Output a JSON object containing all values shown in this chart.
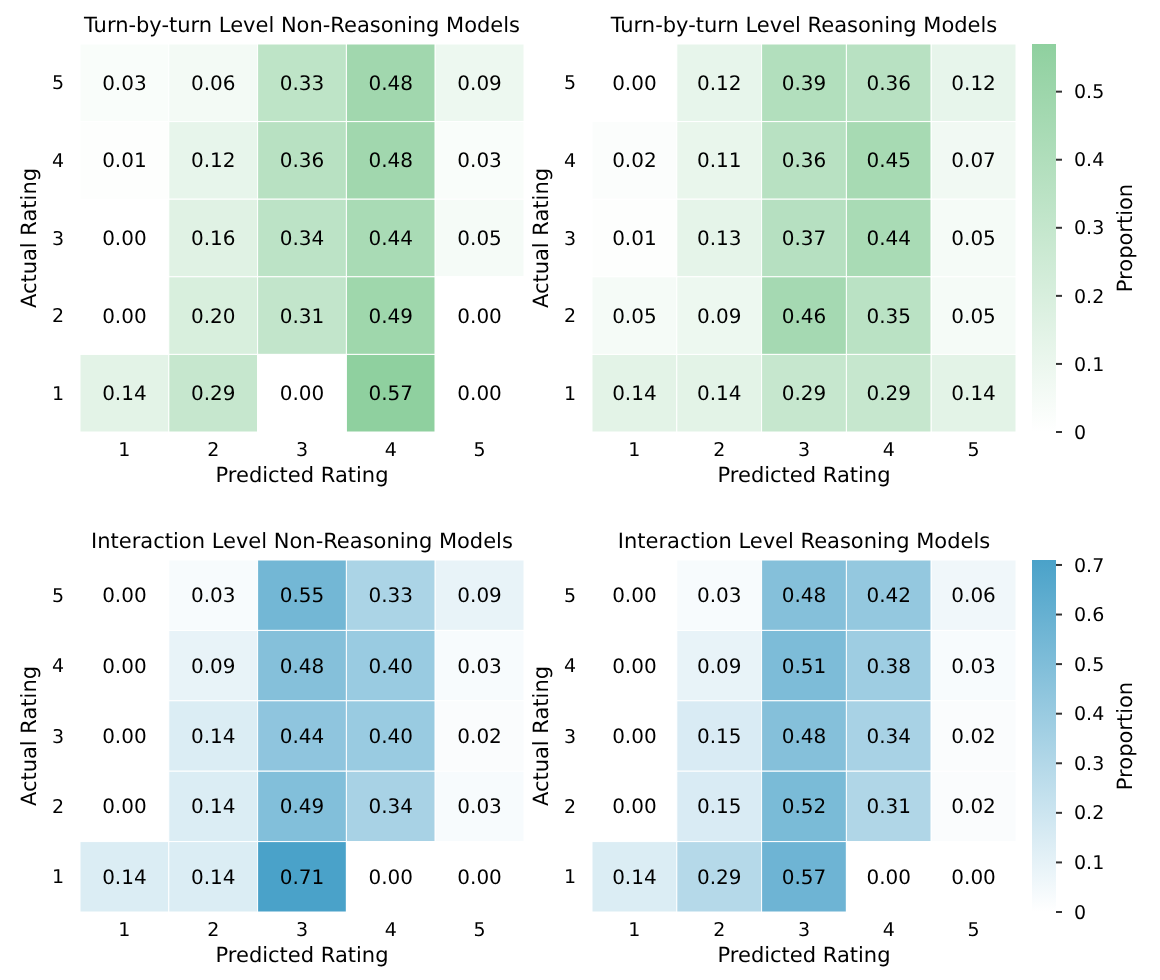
{
  "chart_data": [
    {
      "type": "heatmap",
      "title": "Turn-by-turn Level Non-Reasoning Models",
      "xlabel": "Predicted Rating",
      "ylabel": "Actual Rating",
      "categories": [
        "1",
        "2",
        "3",
        "4",
        "5"
      ],
      "y_categories": [
        "5",
        "4",
        "3",
        "2",
        "1"
      ],
      "color": "#8fd09f",
      "cells": [
        [
          0.03,
          0.06,
          0.33,
          0.48,
          0.09
        ],
        [
          0.01,
          0.12,
          0.36,
          0.48,
          0.03
        ],
        [
          0.0,
          0.16,
          0.34,
          0.44,
          0.05
        ],
        [
          0.0,
          0.2,
          0.31,
          0.49,
          0.0
        ],
        [
          0.14,
          0.29,
          0.0,
          0.57,
          0.0
        ]
      ],
      "cell_labels": [
        [
          "0.03",
          "0.06",
          "0.33",
          "0.48",
          "0.09"
        ],
        [
          "0.01",
          "0.12",
          "0.36",
          "0.48",
          "0.03"
        ],
        [
          "0.00",
          "0.16",
          "0.34",
          "0.44",
          "0.05"
        ],
        [
          "0.00",
          "0.20",
          "0.31",
          "0.49",
          "0.00"
        ],
        [
          "0.14",
          "0.29",
          "0.00",
          "0.57",
          "0.00"
        ]
      ]
    },
    {
      "type": "heatmap",
      "title": "Turn-by-turn Level Reasoning Models",
      "xlabel": "Predicted Rating",
      "ylabel": "Actual Rating",
      "categories": [
        "1",
        "2",
        "3",
        "4",
        "5"
      ],
      "y_categories": [
        "5",
        "4",
        "3",
        "2",
        "1"
      ],
      "color": "#8fd09f",
      "clim": [
        0,
        0.57
      ],
      "cticks": [
        0,
        {
          "value": 0.1,
          "label": "0.1"
        },
        {
          "value": 0.2,
          "label": "0.2"
        },
        {
          "value": 0.3,
          "label": "0.3"
        },
        {
          "value": 0.4,
          "label": "0.4"
        },
        {
          "value": 0.5,
          "label": "0.5"
        }
      ],
      "clabel": "Proportion",
      "cells": [
        [
          0.0,
          0.12,
          0.39,
          0.36,
          0.12
        ],
        [
          0.02,
          0.11,
          0.36,
          0.45,
          0.07
        ],
        [
          0.01,
          0.13,
          0.37,
          0.44,
          0.05
        ],
        [
          0.05,
          0.09,
          0.46,
          0.35,
          0.05
        ],
        [
          0.14,
          0.14,
          0.29,
          0.29,
          0.14
        ]
      ],
      "cell_labels": [
        [
          "0.00",
          "0.12",
          "0.39",
          "0.36",
          "0.12"
        ],
        [
          "0.02",
          "0.11",
          "0.36",
          "0.45",
          "0.07"
        ],
        [
          "0.01",
          "0.13",
          "0.37",
          "0.44",
          "0.05"
        ],
        [
          "0.05",
          "0.09",
          "0.46",
          "0.35",
          "0.05"
        ],
        [
          "0.14",
          "0.14",
          "0.29",
          "0.29",
          "0.14"
        ]
      ]
    },
    {
      "type": "heatmap",
      "title": "Interaction Level Non-Reasoning Models",
      "xlabel": "Predicted Rating",
      "ylabel": "Actual Rating",
      "categories": [
        "1",
        "2",
        "3",
        "4",
        "5"
      ],
      "y_categories": [
        "5",
        "4",
        "3",
        "2",
        "1"
      ],
      "color": "#4aa2c9",
      "cells": [
        [
          0.0,
          0.03,
          0.55,
          0.33,
          0.09
        ],
        [
          0.0,
          0.09,
          0.48,
          0.4,
          0.03
        ],
        [
          0.0,
          0.14,
          0.44,
          0.4,
          0.02
        ],
        [
          0.0,
          0.14,
          0.49,
          0.34,
          0.03
        ],
        [
          0.14,
          0.14,
          0.71,
          0.0,
          0.0
        ]
      ],
      "cell_labels": [
        [
          "0.00",
          "0.03",
          "0.55",
          "0.33",
          "0.09"
        ],
        [
          "0.00",
          "0.09",
          "0.48",
          "0.40",
          "0.03"
        ],
        [
          "0.00",
          "0.14",
          "0.44",
          "0.40",
          "0.02"
        ],
        [
          "0.00",
          "0.14",
          "0.49",
          "0.34",
          "0.03"
        ],
        [
          "0.14",
          "0.14",
          "0.71",
          "0.00",
          "0.00"
        ]
      ]
    },
    {
      "type": "heatmap",
      "title": "Interaction Level Reasoning Models",
      "xlabel": "Predicted Rating",
      "ylabel": "Actual Rating",
      "categories": [
        "1",
        "2",
        "3",
        "4",
        "5"
      ],
      "y_categories": [
        "5",
        "4",
        "3",
        "2",
        "1"
      ],
      "color": "#4aa2c9",
      "clim": [
        0,
        0.71
      ],
      "cticks": [
        0,
        {
          "value": 0.1,
          "label": "0.1"
        },
        {
          "value": 0.2,
          "label": "0.2"
        },
        {
          "value": 0.3,
          "label": "0.3"
        },
        {
          "value": 0.4,
          "label": "0.4"
        },
        {
          "value": 0.5,
          "label": "0.5"
        },
        {
          "value": 0.6,
          "label": "0.6"
        },
        {
          "value": 0.7,
          "label": "0.7"
        }
      ],
      "clabel": "Proportion",
      "cells": [
        [
          0.0,
          0.03,
          0.48,
          0.42,
          0.06
        ],
        [
          0.0,
          0.09,
          0.51,
          0.38,
          0.03
        ],
        [
          0.0,
          0.15,
          0.48,
          0.34,
          0.02
        ],
        [
          0.0,
          0.15,
          0.52,
          0.31,
          0.02
        ],
        [
          0.14,
          0.29,
          0.57,
          0.0,
          0.0
        ]
      ],
      "cell_labels": [
        [
          "0.00",
          "0.03",
          "0.48",
          "0.42",
          "0.06"
        ],
        [
          "0.00",
          "0.09",
          "0.51",
          "0.38",
          "0.03"
        ],
        [
          "0.00",
          "0.15",
          "0.48",
          "0.34",
          "0.02"
        ],
        [
          "0.00",
          "0.15",
          "0.52",
          "0.31",
          "0.02"
        ],
        [
          "0.14",
          "0.29",
          "0.57",
          "0.00",
          "0.00"
        ]
      ]
    }
  ]
}
